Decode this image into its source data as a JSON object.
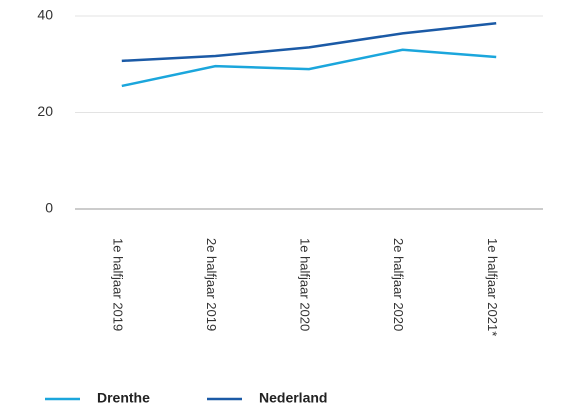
{
  "chart_data": {
    "type": "line",
    "categories": [
      "1e halfjaar 2019",
      "2e halfjaar 2019",
      "1e halfjaar 2020",
      "2e halfjaar 2020",
      "1e halfjaar 2021*"
    ],
    "series": [
      {
        "name": "Drenthe",
        "color": "#1ba6dc",
        "values": [
          25.5,
          29.6,
          29.0,
          33.0,
          31.5
        ]
      },
      {
        "name": "Nederland",
        "color": "#1b5aa6",
        "values": [
          30.7,
          31.7,
          33.5,
          36.4,
          38.5
        ]
      }
    ],
    "ylim": [
      0,
      40
    ],
    "yticks": [
      0,
      20,
      40
    ],
    "grid": true,
    "legend": "bottom"
  }
}
